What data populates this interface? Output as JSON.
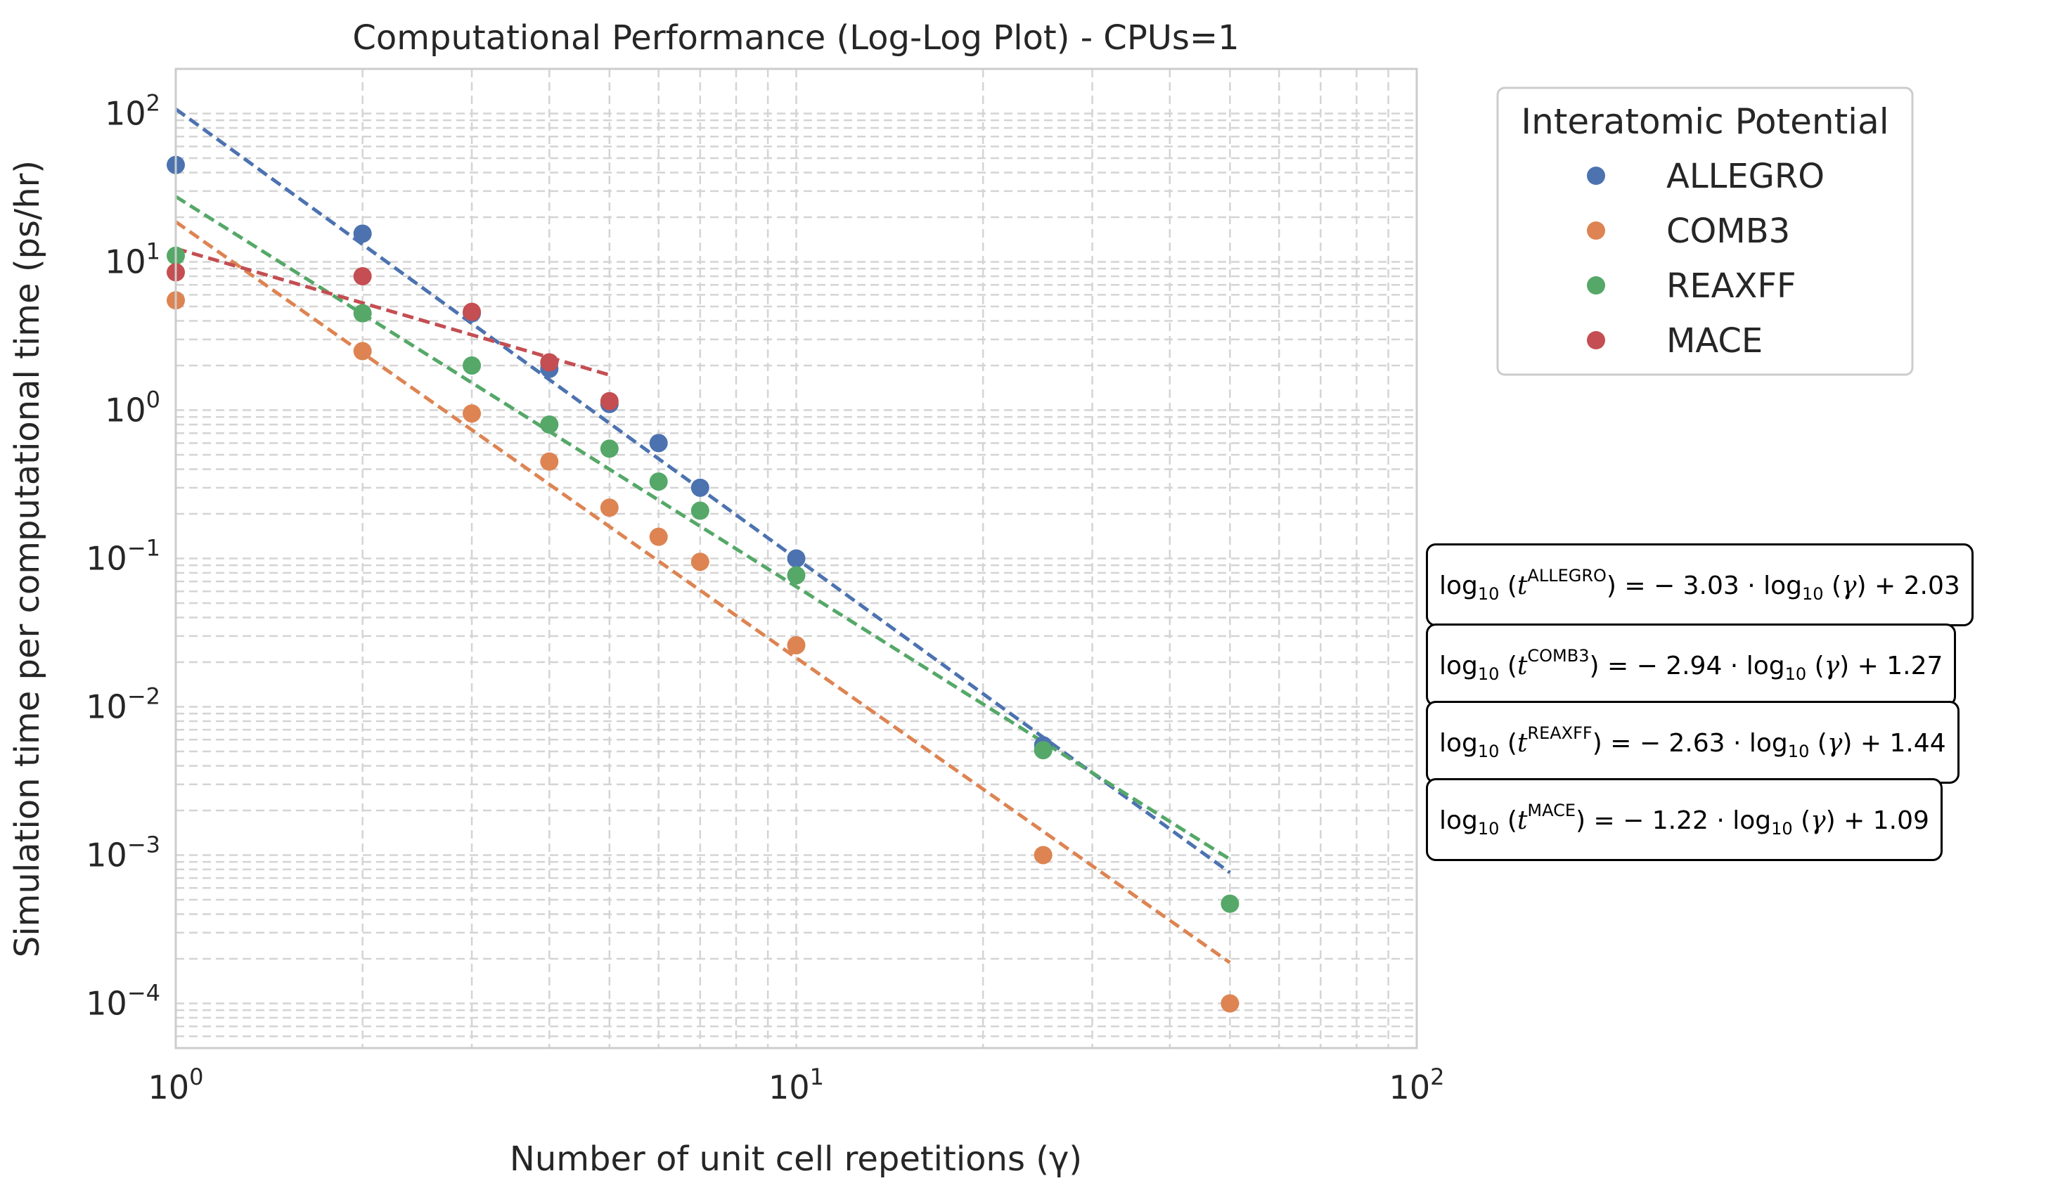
{
  "chart_data": {
    "type": "scatter",
    "title": "Computational Performance (Log-Log Plot) - CPUs=1",
    "xlabel": "Number of unit cell repetitions (γ)",
    "ylabel": "Simulation time per computational time (ps/hr)",
    "xscale": "log",
    "yscale": "log",
    "xlim": [
      1,
      100
    ],
    "ylim": [
      5e-05,
      200
    ],
    "xticks": [
      1,
      10,
      100
    ],
    "xtick_labels": [
      {
        "base": "10",
        "exp": "0"
      },
      {
        "base": "10",
        "exp": "1"
      },
      {
        "base": "10",
        "exp": "2"
      }
    ],
    "yticks": [
      0.0001,
      0.001,
      0.01,
      0.1,
      1,
      10,
      100
    ],
    "ytick_labels": [
      {
        "base": "10",
        "exp": "−4"
      },
      {
        "base": "10",
        "exp": "−3"
      },
      {
        "base": "10",
        "exp": "−2"
      },
      {
        "base": "10",
        "exp": "−1"
      },
      {
        "base": "10",
        "exp": "0"
      },
      {
        "base": "10",
        "exp": "1"
      },
      {
        "base": "10",
        "exp": "2"
      }
    ],
    "grid": "both major and minor, dashed",
    "legend": {
      "title": "Interatomic Potential",
      "placement": "outside right, top"
    },
    "series": [
      {
        "name": "ALLEGRO",
        "color": "#4c72b0",
        "x": [
          1,
          2,
          3,
          4,
          5,
          6,
          7,
          10,
          25
        ],
        "y": [
          45,
          15.5,
          4.5,
          1.9,
          1.1,
          0.6,
          0.3,
          0.1,
          0.0055
        ],
        "fit": {
          "slope": -3.03,
          "intercept": 2.03,
          "x_range": [
            1,
            50
          ]
        }
      },
      {
        "name": "COMB3",
        "color": "#dd8452",
        "x": [
          1,
          2,
          3,
          4,
          5,
          6,
          7,
          10,
          25,
          50
        ],
        "y": [
          5.5,
          2.5,
          0.95,
          0.45,
          0.22,
          0.14,
          0.095,
          0.026,
          0.001,
          0.0001
        ],
        "fit": {
          "slope": -2.94,
          "intercept": 1.27,
          "x_range": [
            1,
            50
          ]
        }
      },
      {
        "name": "REAXFF",
        "color": "#55a868",
        "x": [
          1,
          2,
          3,
          4,
          5,
          6,
          7,
          10,
          25,
          50
        ],
        "y": [
          11,
          4.5,
          2.0,
          0.8,
          0.55,
          0.33,
          0.21,
          0.077,
          0.0051,
          0.00047
        ],
        "fit": {
          "slope": -2.63,
          "intercept": 1.44,
          "x_range": [
            1,
            50
          ]
        }
      },
      {
        "name": "MACE",
        "color": "#c44e52",
        "x": [
          1,
          2,
          3,
          4,
          5
        ],
        "y": [
          8.5,
          8.0,
          4.6,
          2.1,
          1.15
        ],
        "fit": {
          "slope": -1.22,
          "intercept": 1.09,
          "x_range": [
            1,
            5
          ]
        }
      }
    ],
    "annotations": [
      {
        "series_sup": "ALLEGRO",
        "text": ") = − 3.03 · log",
        "tail": "(γ) + 2.03"
      },
      {
        "series_sup": "COMB3",
        "text": ") = − 2.94 · log",
        "tail": "(γ) + 1.27"
      },
      {
        "series_sup": "REAXFF",
        "text": ") = − 2.63 · log",
        "tail": "(γ) + 1.44"
      },
      {
        "series_sup": "MACE",
        "text": ") = − 1.22 · log",
        "tail": "(γ) + 1.09"
      }
    ],
    "annotation_prefix": "log",
    "annotation_sub": "10",
    "annotation_var": "t",
    "annotation_gamma": "γ"
  }
}
